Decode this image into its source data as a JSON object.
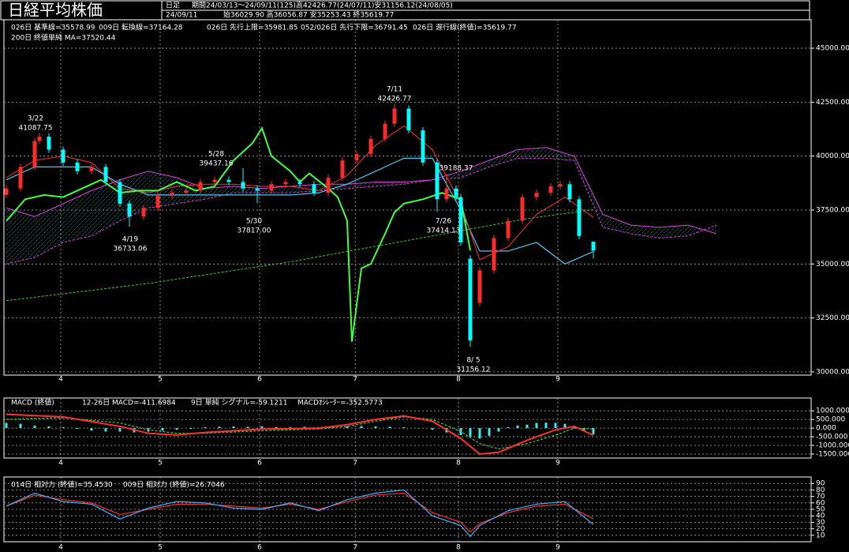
{
  "header": {
    "title": "日経平均株価",
    "timeframe": "日足",
    "period": "期間24/03/13～24/09/11(125)高42426.77(24/07/11)安31156.12(24/08/05)",
    "date": "24/09/11",
    "ohlc": "始36029.90 高36056.87 安35253.43 終35619.77"
  },
  "chart_data": [
    {
      "type": "candlestick",
      "xlim": [
        -0.5,
        170
      ],
      "xticks": [
        {
          "value": 11.5,
          "label": "4"
        },
        {
          "value": 32.5,
          "label": "5"
        },
        {
          "value": 53.5,
          "label": "6"
        },
        {
          "value": 73.7,
          "label": "7"
        },
        {
          "value": 95.5,
          "label": "8"
        },
        {
          "value": 116.5,
          "label": "9"
        }
      ],
      "ylim": [
        29850,
        46320
      ],
      "yticks": [
        {
          "value": 30000,
          "label": "30000.00"
        },
        {
          "value": 32500,
          "label": "32500.00"
        },
        {
          "value": 35000,
          "label": "35000.00"
        },
        {
          "value": 37500,
          "label": "37500.00"
        },
        {
          "value": 40000,
          "label": "40000.00"
        },
        {
          "value": 42500,
          "label": "42500.00"
        },
        {
          "value": 45000,
          "label": "45000.00"
        }
      ],
      "grid": true,
      "up_color": "#ff2a2a",
      "down_color": "#00ffff",
      "candles": {
        "x": [
          0,
          3,
          6,
          7,
          9,
          12,
          15,
          18,
          21,
          24,
          26,
          29,
          32,
          35,
          38,
          41,
          44,
          47,
          50,
          53,
          56,
          59,
          62,
          65,
          68,
          71,
          74,
          77,
          80,
          82,
          85,
          88,
          91,
          93,
          95,
          96,
          98,
          100,
          103,
          106,
          109,
          112,
          115,
          117,
          119,
          121,
          124
        ],
        "open": [
          38200,
          38500,
          39500,
          40700,
          40900,
          40300,
          39700,
          39300,
          39500,
          38800,
          37800,
          37200,
          37600,
          38200,
          38300,
          38400,
          38800,
          38900,
          38800,
          38500,
          38400,
          38700,
          38800,
          38700,
          38300,
          39000,
          39800,
          40100,
          40800,
          41500,
          42200,
          41200,
          39700,
          38000,
          38500,
          38100,
          35250,
          33200,
          34700,
          36200,
          37000,
          38100,
          38300,
          38600,
          38700,
          38000,
          36029.9
        ],
        "high": [
          38650,
          39650,
          40850,
          41087.75,
          41050,
          40450,
          39850,
          39650,
          39650,
          38950,
          37950,
          37750,
          38350,
          38450,
          38550,
          38950,
          39050,
          39050,
          39437.16,
          38650,
          38850,
          38950,
          38950,
          38850,
          39150,
          39950,
          40250,
          40950,
          41650,
          42426.77,
          42350,
          41350,
          39850,
          39188.37,
          38650,
          38250,
          35400,
          34850,
          36350,
          37150,
          38250,
          38450,
          38750,
          38850,
          38850,
          38150,
          36056.87
        ],
        "low": [
          38050,
          38350,
          39350,
          40550,
          40150,
          39550,
          39150,
          39150,
          38650,
          37650,
          36733.06,
          37050,
          37450,
          38050,
          38150,
          38250,
          38650,
          38650,
          38350,
          37817,
          38250,
          38550,
          38550,
          38150,
          38150,
          38850,
          39650,
          39950,
          40650,
          41350,
          41050,
          39550,
          37414.13,
          37850,
          37950,
          35850,
          31156.12,
          33050,
          34550,
          36050,
          36850,
          37950,
          38150,
          38450,
          37850,
          36150,
          35253.43
        ],
        "close": [
          38500,
          39500,
          40700,
          40900,
          40300,
          39700,
          39300,
          39500,
          38800,
          37800,
          37200,
          37600,
          38200,
          38300,
          38400,
          38800,
          38900,
          38800,
          38500,
          38400,
          38700,
          38800,
          38700,
          38300,
          39000,
          39800,
          40100,
          40800,
          41500,
          42200,
          41200,
          39700,
          38000,
          38500,
          38100,
          36000,
          31458,
          34700,
          36200,
          37000,
          38100,
          38300,
          38600,
          38700,
          38000,
          36300,
          35619.77
        ]
      },
      "series": [
        {
          "name": "026日 基準線=35578.99",
          "color": "#48c8f0",
          "x": [
            0,
            6,
            12,
            18,
            24,
            30,
            36,
            42,
            48,
            54,
            60,
            66,
            72,
            78,
            84,
            90,
            96,
            100,
            106,
            112,
            118,
            124
          ],
          "values": [
            38900,
            39500,
            39500,
            39500,
            38700,
            38200,
            38200,
            38200,
            38200,
            38200,
            38200,
            38300,
            38700,
            39300,
            39900,
            39900,
            37500,
            35600,
            35600,
            36000,
            35000,
            35578.99
          ]
        },
        {
          "name": "009日 転換線=37164.28",
          "color": "#ff3030",
          "x": [
            0,
            6,
            12,
            18,
            24,
            30,
            36,
            42,
            48,
            54,
            60,
            66,
            72,
            78,
            84,
            90,
            96,
            100,
            106,
            112,
            118,
            124
          ],
          "values": [
            39000,
            39800,
            40000,
            39700,
            38500,
            38300,
            38600,
            38700,
            38700,
            38600,
            38600,
            38400,
            39100,
            40500,
            41400,
            40300,
            37800,
            35200,
            35800,
            37300,
            38100,
            37164.28
          ]
        },
        {
          "name": "026日 先行上限=35981.85",
          "color": "#e040e0",
          "x": [
            0,
            6,
            12,
            18,
            24,
            30,
            36,
            42,
            48,
            54,
            60,
            66,
            72,
            78,
            84,
            90,
            96,
            102,
            108,
            114,
            120,
            126,
            132,
            138,
            144,
            150
          ],
          "values": [
            37600,
            37200,
            37800,
            38400,
            38900,
            39300,
            39000,
            38500,
            38600,
            38500,
            38600,
            38700,
            38700,
            38800,
            38800,
            38900,
            39300,
            39800,
            40300,
            40400,
            40000,
            37300,
            36800,
            36700,
            36800,
            36400
          ]
        },
        {
          "name": "052/026日 先行下限=36791.45",
          "color": "#e040e0",
          "x": [
            0,
            6,
            12,
            18,
            24,
            30,
            36,
            42,
            48,
            54,
            60,
            66,
            72,
            78,
            84,
            90,
            96,
            102,
            108,
            114,
            120,
            126,
            132,
            138,
            144,
            150
          ],
          "values": [
            35000,
            35300,
            36000,
            36300,
            37000,
            37600,
            37800,
            38000,
            38300,
            38300,
            38300,
            38400,
            38500,
            38600,
            38700,
            38900,
            39000,
            39500,
            39900,
            39900,
            39800,
            36700,
            36400,
            36200,
            36300,
            36800
          ]
        },
        {
          "name": "026日 遅行線(終値)=35619.77",
          "color": "#40ff40",
          "x": [
            0,
            4,
            8,
            12,
            16,
            20,
            24,
            28,
            32,
            36,
            40,
            44,
            48,
            52,
            54,
            56,
            60,
            62,
            64,
            68,
            70,
            72,
            73,
            75,
            77,
            80,
            82,
            84,
            88,
            92,
            96,
            98
          ],
          "values": [
            37000,
            38000,
            38200,
            38100,
            38500,
            38900,
            38300,
            38400,
            38400,
            38800,
            38400,
            38600,
            39800,
            40600,
            41300,
            40000,
            39300,
            38800,
            39200,
            38500,
            38100,
            37000,
            31400,
            34800,
            35000,
            36400,
            37400,
            37800,
            38000,
            38300,
            38000,
            35619.77
          ]
        },
        {
          "name": "200日 終値単純 MA=37520.44",
          "color": "#30d030",
          "x": [
            0,
            30,
            60,
            90,
            110,
            124
          ],
          "values": [
            33300,
            34100,
            35100,
            36300,
            37100,
            37520.44
          ]
        }
      ],
      "annotations": [
        {
          "label": "3/22",
          "value": 41087.75
        },
        {
          "label": "5/28",
          "value": 39437.16
        },
        {
          "label": "4/19",
          "value": 36733.06
        },
        {
          "label": "5/30",
          "value": {
            "value": 37817,
            "label": "37817.00"
          }
        },
        {
          "label": "7/11",
          "value": 42426.77
        },
        {
          "value": 39188.37
        },
        {
          "label": "7/26",
          "value": 37414.13
        },
        {
          "label": "8/ 5",
          "value": 31156.12
        }
      ]
    },
    {
      "type": "macd",
      "title": "MACD (終値)",
      "xlim": [
        -0.5,
        170
      ],
      "xticks": [
        {
          "value": 11.5,
          "label": "4"
        },
        {
          "value": 32.5,
          "label": "5"
        },
        {
          "value": 53.5,
          "label": "6"
        },
        {
          "value": 73.7,
          "label": "7"
        },
        {
          "value": 95.5,
          "label": "8"
        },
        {
          "value": 116.5,
          "label": "9"
        }
      ],
      "ylim": [
        -1730,
        1740
      ],
      "yticks": [
        {
          "value": -1500,
          "label": "-1500.000"
        },
        {
          "value": -1000,
          "label": "-1000.000"
        },
        {
          "value": -500,
          "label": "-500.000"
        },
        {
          "value": 0,
          "label": "0.000"
        },
        {
          "value": 500,
          "label": "500.000"
        },
        {
          "value": 1000,
          "label": "1000.000"
        }
      ],
      "grid": true,
      "series": [
        {
          "name": "12-26日 MACD=-411.6984",
          "color": "#ff3030",
          "x": [
            0,
            12,
            24,
            30,
            36,
            42,
            54,
            66,
            72,
            78,
            84,
            90,
            96,
            100,
            104,
            110,
            116,
            120,
            124
          ],
          "values": [
            800,
            650,
            100,
            -300,
            -400,
            -250,
            -50,
            0,
            200,
            500,
            700,
            400,
            -600,
            -1500,
            -1400,
            -700,
            -100,
            100,
            -411.6984
          ]
        },
        {
          "name": "9日 単純 シグナル=-59.1211",
          "color": "#40d040",
          "x": [
            0,
            12,
            24,
            30,
            36,
            42,
            54,
            66,
            72,
            78,
            84,
            90,
            96,
            100,
            104,
            110,
            116,
            120,
            124
          ],
          "values": [
            500,
            600,
            300,
            -100,
            -300,
            -300,
            -150,
            -50,
            100,
            400,
            650,
            500,
            -200,
            -900,
            -1200,
            -900,
            -400,
            0,
            -59.1211
          ]
        },
        {
          "name": "MACDｵｼﾚｰﾀｰ=-352.5773",
          "color": "#40e8f0",
          "x": [
            0,
            3,
            6,
            9,
            12,
            15,
            18,
            21,
            24,
            27,
            30,
            33,
            36,
            39,
            42,
            45,
            48,
            51,
            54,
            57,
            60,
            63,
            66,
            69,
            72,
            75,
            78,
            81,
            84,
            87,
            90,
            93,
            96,
            98,
            100,
            102,
            104,
            106,
            108,
            110,
            112,
            114,
            116,
            118,
            120,
            122,
            124
          ],
          "values": [
            300,
            250,
            150,
            100,
            50,
            -50,
            -150,
            -200,
            -200,
            -250,
            -200,
            -150,
            -100,
            -50,
            50,
            80,
            100,
            80,
            100,
            60,
            50,
            80,
            50,
            60,
            100,
            120,
            100,
            80,
            50,
            -20,
            -100,
            -250,
            -400,
            -500,
            -600,
            -450,
            -200,
            50,
            150,
            200,
            300,
            320,
            300,
            250,
            100,
            -150,
            -352.5773
          ]
        }
      ]
    },
    {
      "type": "line",
      "xlim": [
        -0.5,
        170
      ],
      "xticks": [
        {
          "value": 11.5,
          "label": "4"
        },
        {
          "value": 32.5,
          "label": "5"
        },
        {
          "value": 53.5,
          "label": "6"
        },
        {
          "value": 73.7,
          "label": "7"
        },
        {
          "value": 95.5,
          "label": "8"
        },
        {
          "value": 116.5,
          "label": "9"
        }
      ],
      "ylim": [
        0,
        100
      ],
      "yticks": [
        10,
        20,
        30,
        40,
        50,
        60,
        70,
        80,
        90
      ],
      "grid": true,
      "series": [
        {
          "name": "014日 相対力 (終値)=35.4530",
          "color": "#ff3030",
          "x": [
            0,
            6,
            12,
            18,
            24,
            30,
            36,
            42,
            48,
            54,
            60,
            66,
            72,
            78,
            84,
            90,
            96,
            98,
            100,
            106,
            112,
            118,
            124
          ],
          "values": [
            55,
            72,
            65,
            60,
            42,
            50,
            58,
            58,
            55,
            52,
            58,
            50,
            62,
            72,
            75,
            45,
            30,
            15,
            28,
            45,
            55,
            58,
            35.453
          ]
        },
        {
          "name": "009日 相対力 (終値)=26.7046",
          "color": "#40b0ff",
          "x": [
            0,
            6,
            12,
            18,
            24,
            30,
            36,
            42,
            48,
            54,
            60,
            66,
            72,
            78,
            84,
            90,
            96,
            98,
            100,
            106,
            112,
            118,
            124
          ],
          "values": [
            55,
            75,
            62,
            58,
            35,
            52,
            62,
            60,
            52,
            50,
            60,
            48,
            65,
            75,
            80,
            40,
            25,
            8,
            25,
            48,
            58,
            62,
            26.7046
          ]
        }
      ]
    }
  ]
}
